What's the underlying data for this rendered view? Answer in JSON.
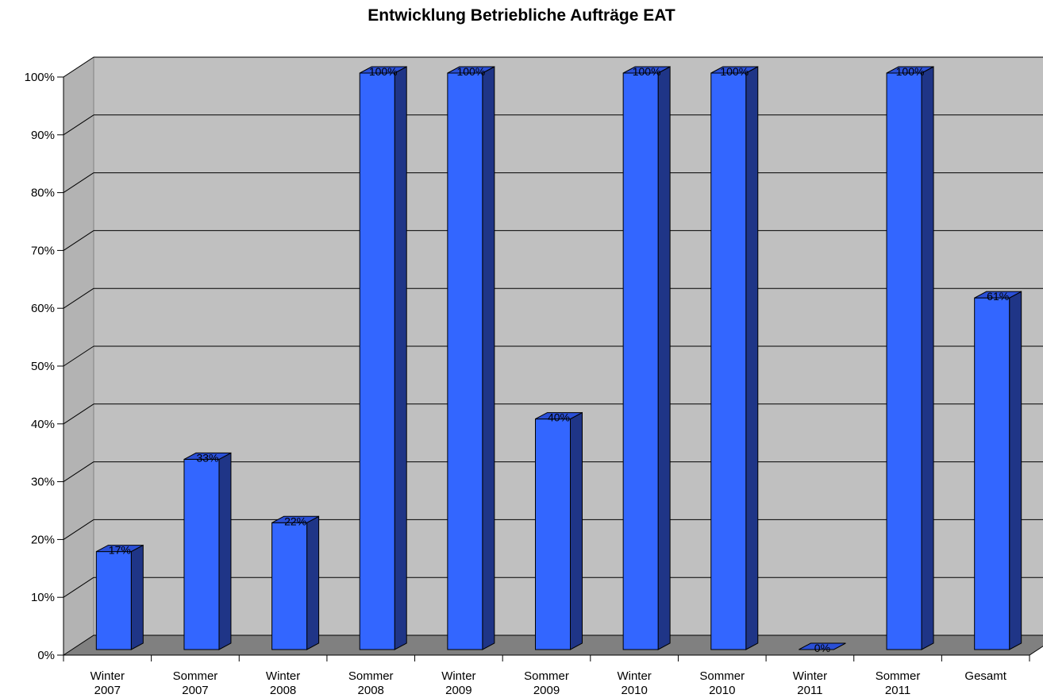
{
  "chart_data": {
    "type": "bar",
    "title": "Entwicklung Betriebliche Aufträge EAT",
    "xlabel": "",
    "ylabel": "",
    "ylim": [
      0,
      100
    ],
    "y_ticks": [
      "0%",
      "10%",
      "20%",
      "30%",
      "40%",
      "50%",
      "60%",
      "70%",
      "80%",
      "90%",
      "100%"
    ],
    "categories": [
      [
        "Winter",
        "2007"
      ],
      [
        "Sommer",
        "2007"
      ],
      [
        "Winter",
        "2008"
      ],
      [
        "Sommer",
        "2008"
      ],
      [
        "Winter",
        "2009"
      ],
      [
        "Sommer",
        "2009"
      ],
      [
        "Winter",
        "2010"
      ],
      [
        "Sommer",
        "2010"
      ],
      [
        "Winter",
        "2011"
      ],
      [
        "Sommer",
        "2011"
      ],
      [
        "Gesamt"
      ]
    ],
    "values": [
      17,
      33,
      22,
      100,
      100,
      40,
      100,
      100,
      0,
      100,
      61
    ],
    "data_labels": [
      "17%",
      "33%",
      "22%",
      "100%",
      "100%",
      "40%",
      "100%",
      "100%",
      "0%",
      "100%",
      "61%"
    ],
    "grid": true,
    "legend": "none",
    "colors": {
      "bar_front": "#3366ff",
      "bar_side": "#1f3587",
      "bar_top": "#2a4fd6",
      "back_wall": "#c0c0c0",
      "side_wall": "#b3b3b3",
      "floor": "#808080"
    }
  }
}
